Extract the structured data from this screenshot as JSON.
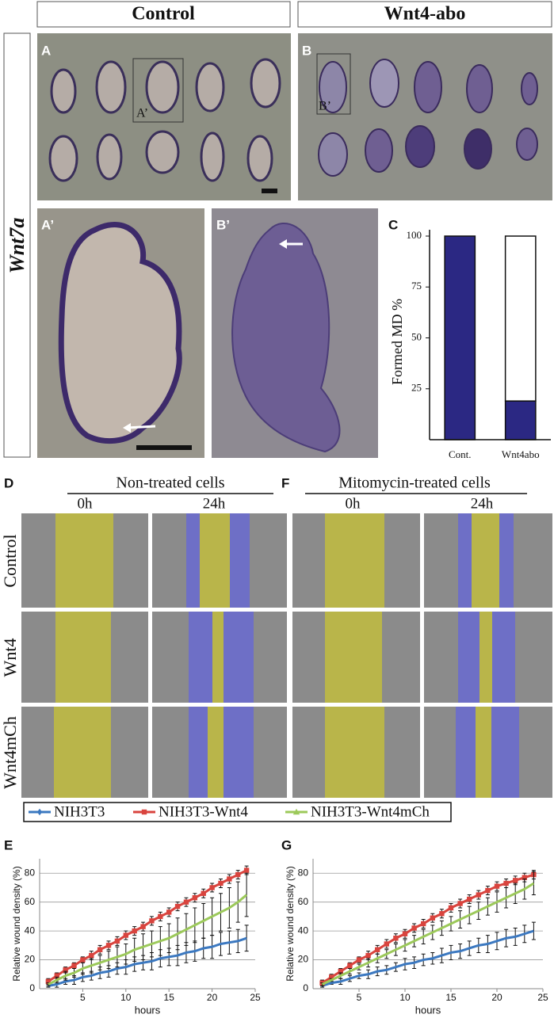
{
  "figure": {
    "headers": [
      "Control",
      "Wnt4-abo"
    ],
    "gene": "Wnt7a",
    "panel_labels": [
      "A",
      "B",
      "A’",
      "B’"
    ],
    "inset_labels": [
      "A’",
      "B’"
    ]
  },
  "wound_assay": {
    "panels": [
      {
        "label": "D",
        "title": "Non-treated cells",
        "times": [
          "0h",
          "24h"
        ]
      },
      {
        "label": "F",
        "title": "Mitomycin-treated cells",
        "times": [
          "0h",
          "24h"
        ]
      }
    ],
    "rows": [
      "Control",
      "Wnt4",
      "Wnt4mCh"
    ]
  },
  "chart_data": [
    {
      "type": "bar",
      "stacked": true,
      "label": "C",
      "ylabel": "Formed MD %",
      "categories": [
        "Cont.",
        "Wnt4abo"
      ],
      "series": [
        {
          "color": "#2b2883",
          "values": [
            100,
            19
          ]
        },
        {
          "color": "#ffffff",
          "values": [
            0,
            81
          ]
        }
      ],
      "ylim": [
        0,
        100
      ],
      "yticks": [
        25,
        50,
        75,
        100
      ]
    },
    {
      "type": "line",
      "label": "E",
      "ylabel": "Relative wound density (%)",
      "xlabel": "hours",
      "x": [
        1,
        2,
        3,
        4,
        5,
        6,
        7,
        8,
        9,
        10,
        11,
        12,
        13,
        14,
        15,
        16,
        17,
        18,
        19,
        20,
        21,
        22,
        23,
        24
      ],
      "series": [
        {
          "name": "NIH3T3",
          "color": "#3b78c0",
          "marker": "diamond",
          "values": [
            2,
            3,
            5,
            6,
            8,
            9,
            11,
            12,
            14,
            15,
            17,
            18,
            19,
            21,
            22,
            23,
            25,
            26,
            28,
            29,
            31,
            32,
            33,
            35
          ],
          "errors": [
            1,
            2,
            2,
            3,
            3,
            3,
            4,
            4,
            4,
            5,
            5,
            5,
            6,
            6,
            6,
            7,
            7,
            7,
            7,
            8,
            8,
            8,
            8,
            9
          ]
        },
        {
          "name": "NIH3T3-Wnt4",
          "color": "#d9443e",
          "marker": "square",
          "values": [
            5,
            9,
            13,
            16,
            20,
            23,
            27,
            30,
            33,
            37,
            40,
            43,
            47,
            50,
            53,
            57,
            60,
            63,
            66,
            70,
            73,
            76,
            79,
            82
          ],
          "errors": [
            2,
            2,
            2,
            2,
            2,
            3,
            3,
            3,
            3,
            3,
            3,
            3,
            3,
            3,
            3,
            3,
            3,
            3,
            3,
            3,
            3,
            3,
            3,
            3
          ]
        },
        {
          "name": "NIH3T3-Wnt4mCh",
          "color": "#9cc95a",
          "marker": "triangle",
          "values": [
            3,
            6,
            9,
            11,
            14,
            16,
            18,
            20,
            22,
            24,
            27,
            29,
            31,
            33,
            35,
            38,
            41,
            44,
            47,
            50,
            53,
            56,
            60,
            65
          ],
          "errors": [
            1,
            2,
            3,
            3,
            4,
            5,
            5,
            6,
            7,
            7,
            8,
            9,
            9,
            10,
            10,
            11,
            11,
            12,
            12,
            13,
            13,
            14,
            14,
            15
          ]
        }
      ],
      "xlim": [
        0,
        25
      ],
      "xticks": [
        5,
        10,
        15,
        20,
        25
      ],
      "ylim": [
        0,
        90
      ],
      "yticks": [
        0,
        20,
        40,
        60,
        80
      ],
      "grid": true
    },
    {
      "type": "line",
      "label": "G",
      "ylabel": "Relative wound density (%)",
      "xlabel": "hours",
      "x": [
        1,
        2,
        3,
        4,
        5,
        6,
        7,
        8,
        9,
        10,
        11,
        12,
        13,
        14,
        15,
        16,
        17,
        18,
        19,
        20,
        21,
        22,
        23,
        24
      ],
      "series": [
        {
          "color": "#3b78c0",
          "marker": "diamond",
          "values": [
            2,
            4,
            5,
            7,
            9,
            10,
            12,
            13,
            15,
            17,
            18,
            20,
            21,
            23,
            25,
            26,
            28,
            30,
            31,
            33,
            35,
            36,
            38,
            40
          ],
          "errors": [
            1,
            1,
            2,
            2,
            2,
            3,
            3,
            3,
            3,
            4,
            4,
            4,
            4,
            5,
            5,
            5,
            5,
            5,
            6,
            6,
            6,
            6,
            6,
            6
          ]
        },
        {
          "color": "#d9443e",
          "marker": "square",
          "values": [
            4,
            8,
            12,
            16,
            20,
            23,
            27,
            31,
            35,
            38,
            42,
            45,
            49,
            52,
            56,
            59,
            62,
            65,
            68,
            71,
            73,
            75,
            77,
            79
          ],
          "errors": [
            2,
            2,
            2,
            2,
            2,
            3,
            3,
            3,
            3,
            3,
            3,
            3,
            3,
            3,
            3,
            3,
            3,
            3,
            3,
            3,
            3,
            3,
            3,
            3
          ]
        },
        {
          "color": "#9cc95a",
          "marker": "triangle",
          "values": [
            3,
            6,
            9,
            12,
            15,
            18,
            21,
            24,
            27,
            30,
            33,
            36,
            39,
            42,
            45,
            48,
            51,
            54,
            57,
            60,
            63,
            66,
            69,
            73
          ],
          "errors": [
            1,
            1,
            2,
            2,
            2,
            3,
            3,
            3,
            4,
            4,
            4,
            5,
            5,
            5,
            5,
            6,
            6,
            6,
            6,
            7,
            7,
            7,
            7,
            8
          ]
        }
      ],
      "xlim": [
        0,
        25
      ],
      "xticks": [
        5,
        10,
        15,
        20,
        25
      ],
      "ylim": [
        0,
        90
      ],
      "yticks": [
        0,
        20,
        40,
        60,
        80
      ],
      "grid": true
    }
  ]
}
